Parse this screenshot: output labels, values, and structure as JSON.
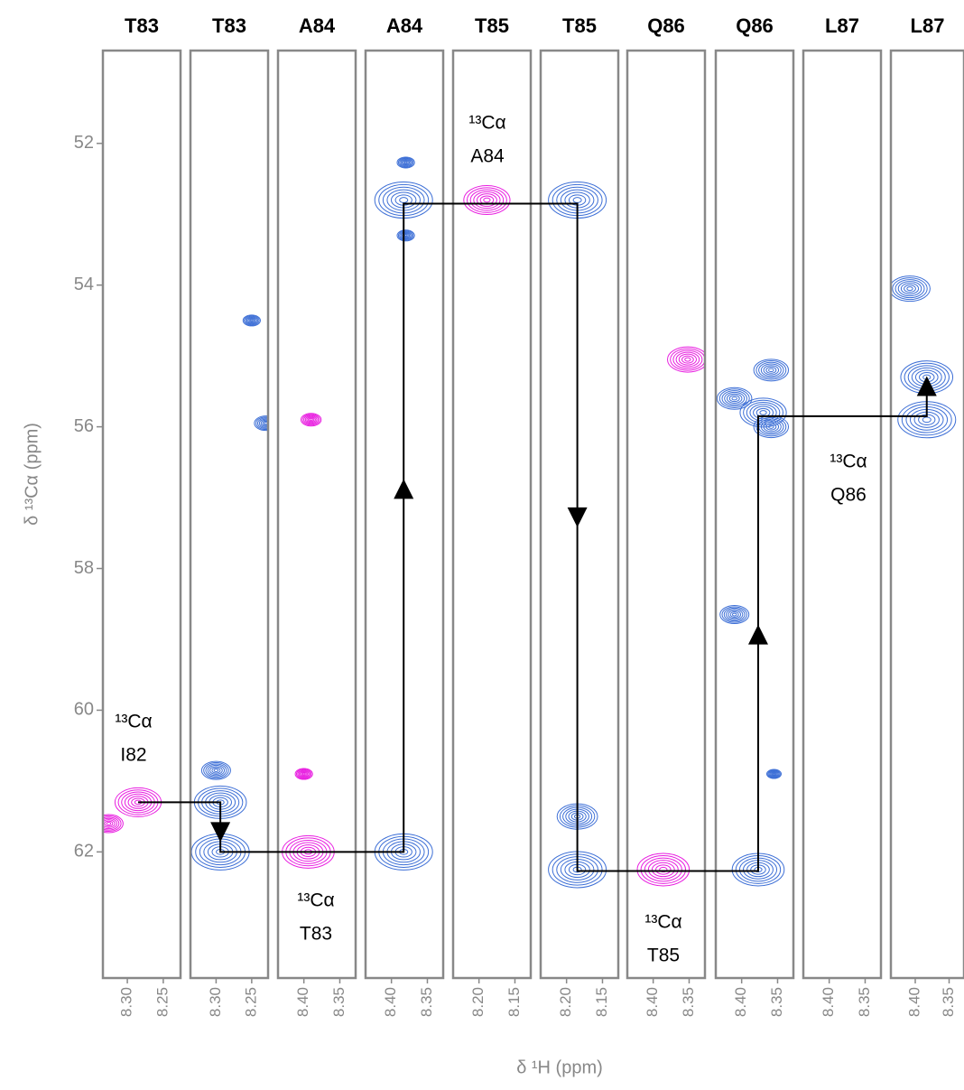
{
  "chart_data": {
    "type": "nmr-strips",
    "ylabel": "δ ¹³Cα (ppm)",
    "xlabel": "δ ¹H (ppm)",
    "ylim": [
      50.69,
      63.78
    ],
    "yticks": [
      52,
      54,
      56,
      58,
      60,
      62
    ],
    "strips": [
      {
        "title": "T83",
        "xlim": [
          8.334,
          8.226
        ],
        "xticks": [
          {
            "value": 8.3,
            "label": "8.30"
          },
          8.25
        ],
        "peaks": [
          {
            "x": 8.285,
            "y": 61.3,
            "color": "#e81ee0"
          },
          {
            "x": 8.326,
            "y": 61.6,
            "color": "#e81ee0"
          }
        ]
      },
      {
        "title": "T83",
        "xlim": [
          8.336,
          8.227
        ],
        "xticks": [
          {
            "value": 8.3,
            "label": "8.30"
          },
          8.25
        ],
        "peaks": [
          {
            "x": 8.294,
            "y": 62.0,
            "color": "#3d6fd6"
          },
          {
            "x": 8.294,
            "y": 61.3,
            "color": "#3d6fd6"
          },
          {
            "x": 8.3,
            "y": 60.85,
            "color": "#3d6fd6"
          },
          {
            "x": 8.25,
            "y": 54.5,
            "color": "#3d6fd6"
          },
          {
            "x": 8.23,
            "y": 55.95,
            "color": "#3d6fd6"
          }
        ]
      },
      {
        "title": "A84",
        "xlim": [
          8.436,
          8.328
        ],
        "xticks": [
          {
            "value": 8.4,
            "label": "8.40"
          },
          8.35
        ],
        "peaks": [
          {
            "x": 8.394,
            "y": 62.0,
            "color": "#e81ee0"
          },
          {
            "x": 8.39,
            "y": 55.9,
            "color": "#e81ee0"
          },
          {
            "x": 8.4,
            "y": 60.9,
            "color": "#e81ee0"
          }
        ]
      },
      {
        "title": "A84",
        "xlim": [
          8.436,
          8.328
        ],
        "xticks": [
          {
            "value": 8.4,
            "label": "8.40"
          },
          8.35
        ],
        "peaks": [
          {
            "x": 8.383,
            "y": 62.0,
            "color": "#3d6fd6"
          },
          {
            "x": 8.383,
            "y": 52.8,
            "color": "#3d6fd6"
          },
          {
            "x": 8.38,
            "y": 52.27,
            "color": "#3d6fd6"
          },
          {
            "x": 8.38,
            "y": 53.3,
            "color": "#3d6fd6"
          }
        ]
      },
      {
        "title": "T85",
        "xlim": [
          8.236,
          8.128
        ],
        "xticks": [
          {
            "value": 8.2,
            "label": "8.20"
          },
          8.15
        ],
        "peaks": [
          {
            "x": 8.189,
            "y": 52.8,
            "color": "#e81ee0"
          }
        ]
      },
      {
        "title": "T85",
        "xlim": [
          8.236,
          8.128
        ],
        "xticks": [
          {
            "value": 8.2,
            "label": "8.20"
          },
          8.15
        ],
        "peaks": [
          {
            "x": 8.185,
            "y": 52.8,
            "color": "#3d6fd6"
          },
          {
            "x": 8.185,
            "y": 62.25,
            "color": "#3d6fd6"
          },
          {
            "x": 8.185,
            "y": 61.5,
            "color": "#3d6fd6"
          }
        ]
      },
      {
        "title": "Q86",
        "xlim": [
          8.436,
          8.328
        ],
        "xticks": [
          {
            "value": 8.4,
            "label": "8.40"
          },
          8.35
        ],
        "peaks": [
          {
            "x": 8.386,
            "y": 62.25,
            "color": "#e81ee0"
          },
          {
            "x": 8.352,
            "y": 55.05,
            "color": "#e81ee0"
          }
        ]
      },
      {
        "title": "Q86",
        "xlim": [
          8.436,
          8.328
        ],
        "xticks": [
          {
            "value": 8.4,
            "label": "8.40"
          },
          8.35
        ],
        "peaks": [
          {
            "x": 8.377,
            "y": 62.25,
            "color": "#3d6fd6"
          },
          {
            "x": 8.37,
            "y": 55.8,
            "color": "#3d6fd6"
          },
          {
            "x": 8.359,
            "y": 55.2,
            "color": "#3d6fd6"
          },
          {
            "x": 8.359,
            "y": 56.0,
            "color": "#3d6fd6"
          },
          {
            "x": 8.41,
            "y": 55.6,
            "color": "#3d6fd6"
          },
          {
            "x": 8.41,
            "y": 58.65,
            "color": "#3d6fd6"
          },
          {
            "x": 8.355,
            "y": 60.9,
            "color": "#3d6fd6"
          }
        ]
      },
      {
        "title": "L87",
        "xlim": [
          8.436,
          8.328
        ],
        "xticks": [
          {
            "value": 8.4,
            "label": "8.40"
          },
          8.35
        ],
        "peaks": []
      },
      {
        "title": "L87",
        "xlim": [
          8.436,
          8.328
        ],
        "xticks": [
          {
            "value": 8.4,
            "label": "8.40"
          },
          8.35
        ],
        "peaks": [
          {
            "x": 8.383,
            "y": 55.3,
            "color": "#3d6fd6"
          },
          {
            "x": 8.408,
            "y": 54.05,
            "color": "#3d6fd6"
          },
          {
            "x": 8.383,
            "y": 55.9,
            "color": "#3d6fd6"
          }
        ]
      }
    ],
    "walk": {
      "strip": [
        0,
        1,
        1,
        3,
        3,
        5,
        5,
        7,
        7,
        9,
        9
      ],
      "x": [
        8.285,
        8.294,
        8.294,
        8.383,
        8.383,
        8.185,
        8.185,
        8.377,
        8.377,
        8.383,
        8.383
      ],
      "y": [
        61.3,
        61.3,
        62.0,
        62.0,
        52.85,
        52.85,
        62.27,
        62.27,
        55.85,
        55.85,
        55.35
      ]
    },
    "annotations": [
      [
        "¹³Cα",
        "I82"
      ],
      [
        "¹³Cα",
        "A84"
      ],
      [
        "¹³Cα",
        "T83"
      ],
      [
        "¹³Cα",
        "T85"
      ],
      [
        "¹³Cα",
        "Q86"
      ]
    ]
  }
}
